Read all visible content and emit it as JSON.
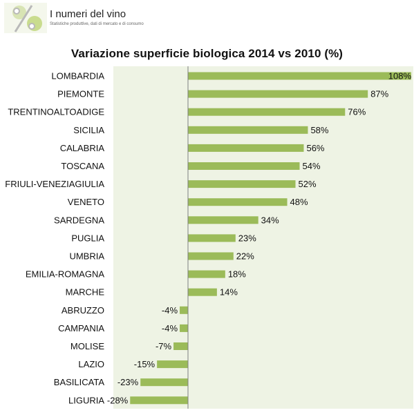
{
  "header": {
    "brand_title": "I numeri del vino",
    "brand_subtitle": "Statistiche produttive, dati di mercato e di consumo"
  },
  "chart_data": {
    "type": "bar",
    "orientation": "horizontal",
    "title": "Variazione superficie biologica 2014 vs 2010 (%)",
    "xlabel": "",
    "ylabel": "",
    "xlim": [
      -30,
      110
    ],
    "grid": false,
    "legend": "none",
    "bar_color": "#9bbb59",
    "plot_background": "#eef3e4",
    "categories": [
      "LOMBARDIA",
      "PIEMONTE",
      "TRENTINOALTOADIGE",
      "SICILIA",
      "CALABRIA",
      "TOSCANA",
      "FRIULI-VENEZIAGIULIA",
      "VENETO",
      "SARDEGNA",
      "PUGLIA",
      "UMBRIA",
      "EMILIA-ROMAGNA",
      "MARCHE",
      "ABRUZZO",
      "CAMPANIA",
      "MOLISE",
      "LAZIO",
      "BASILICATA",
      "LIGURIA"
    ],
    "values": [
      108,
      87,
      76,
      58,
      56,
      54,
      52,
      48,
      34,
      23,
      22,
      18,
      14,
      -4,
      -4,
      -7,
      -15,
      -23,
      -28
    ],
    "value_labels": [
      "108%",
      "87%",
      "76%",
      "58%",
      "56%",
      "54%",
      "52%",
      "48%",
      "34%",
      "23%",
      "22%",
      "18%",
      "14%",
      "-4%",
      "-4%",
      "-7%",
      "-15%",
      "-23%",
      "-28%"
    ]
  }
}
